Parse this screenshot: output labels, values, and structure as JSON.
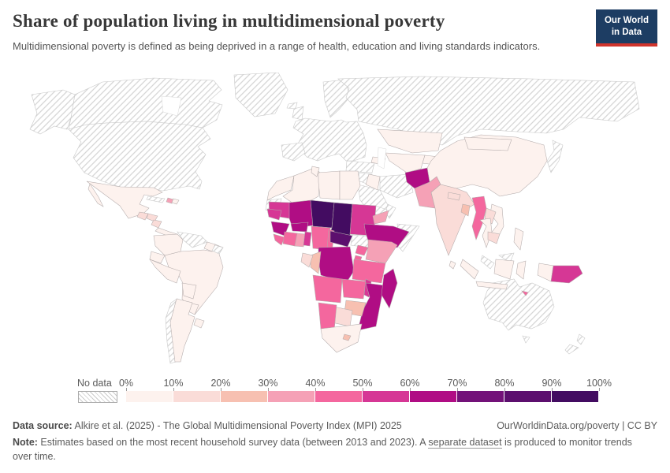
{
  "header": {
    "title": "Share of population living in multidimensional poverty",
    "subtitle": "Multidimensional poverty is defined as being deprived in a range of health, education and living standards indicators.",
    "logo": {
      "line1": "Our World",
      "line2": "in Data",
      "bg_color": "#1d3d63",
      "accent_color": "#d0342c"
    }
  },
  "legend": {
    "no_data_label": "No data",
    "tick_labels": [
      "0%",
      "10%",
      "20%",
      "30%",
      "40%",
      "50%",
      "60%",
      "70%",
      "80%",
      "90%",
      "100%"
    ]
  },
  "chart_data": {
    "type": "choropleth-map",
    "metric": "Share of population living in multidimensional poverty",
    "unit": "% of population",
    "bins": [
      {
        "range": "0-10%",
        "color": "#fdf2ee"
      },
      {
        "range": "10-20%",
        "color": "#fadcd8"
      },
      {
        "range": "20-30%",
        "color": "#f7c0b1"
      },
      {
        "range": "30-40%",
        "color": "#f5a1b6"
      },
      {
        "range": "40-50%",
        "color": "#f4679e"
      },
      {
        "range": "50-60%",
        "color": "#d63795"
      },
      {
        "range": "60-70%",
        "color": "#b00d84"
      },
      {
        "range": "70-80%",
        "color": "#731279"
      },
      {
        "range": "80-90%",
        "color": "#5c0f6e"
      },
      {
        "range": "90-100%",
        "color": "#430c61"
      }
    ],
    "no_data_style": "gray diagonal hatching",
    "countries": {
      "United States": "No data",
      "Canada": "No data",
      "Greenland": "No data",
      "Iceland": "No data",
      "Europe": "No data",
      "Russia": "No data",
      "Turkey": "No data",
      "Syria": "No data",
      "Saudi Arabia": "No data",
      "Oman": "No data",
      "Iran": "No data",
      "Japan": "No data",
      "Korea": "No data",
      "Malaysia": "No data",
      "Australia": "No data",
      "New Zealand": "No data",
      "Chile": "No data",
      "Venezuela": "No data",
      "Cuba": "No data",
      "French Guiana": "No data",
      "Western Sahara": "No data",
      "Somalia": "No data",
      "Eritrea": "No data",
      "South Sudan": "No data",
      "Mexico": "0-10%",
      "Guatemala": "10-20%",
      "Honduras": "10-20%",
      "Nicaragua": "10-20%",
      "Panama": "0-10%",
      "Haiti": "30-40%",
      "Dominican Republic": "0-10%",
      "Colombia": "0-10%",
      "Guyana": "0-10%",
      "Ecuador": "0-10%",
      "Peru": "0-10%",
      "Brazil": "0-10%",
      "Bolivia": "0-10%",
      "Paraguay": "0-10%",
      "Uruguay": "0-10%",
      "Argentina": "0-10%",
      "Morocco": "0-10%",
      "Algeria": "0-10%",
      "Tunisia": "0-10%",
      "Libya": "0-10%",
      "Egypt": "0-10%",
      "Mauritania": "50-60%",
      "Mali": "60-70%",
      "Niger": "90-100%",
      "Chad": "90-100%",
      "Sudan": "50-60%",
      "Ethiopia": "60-70%",
      "Senegal": "50-60%",
      "Guinea": "60-70%",
      "Sierra Leone": "40-50%",
      "Cote d'Ivoire": "40-50%",
      "Ghana": "30-40%",
      "Benin": "50-60%",
      "Burkina Faso": "60-70%",
      "Nigeria": "40-50%",
      "Cameroon": "40-50%",
      "Central African Republic": "80-90%",
      "Democratic Republic of Congo": "60-70%",
      "Congo": "20-30%",
      "Gabon": "10-20%",
      "Uganda": "40-50%",
      "Kenya": "30-40%",
      "Rwanda": "40-50%",
      "Tanzania": "40-50%",
      "Angola": "40-50%",
      "Zambia": "40-50%",
      "Malawi": "50-60%",
      "Mozambique": "60-70%",
      "Zimbabwe": "20-30%",
      "Botswana": "10-20%",
      "Namibia": "40-50%",
      "South Africa": "0-10%",
      "Lesotho": "20-30%",
      "Madagascar": "60-70%",
      "Iraq": "0-10%",
      "Yemen": "30-40%",
      "Azerbaijan": "0-10%",
      "Kazakhstan": "0-10%",
      "Uzbekistan": "0-10%",
      "Tajikistan": "0-10%",
      "Afghanistan": "60-70%",
      "Pakistan": "30-40%",
      "India": "10-20%",
      "Nepal": "10-20%",
      "Bangladesh": "20-30%",
      "Sri Lanka": "0-10%",
      "China": "0-10%",
      "Mongolia": "0-10%",
      "Myanmar": "40-50%",
      "Thailand": "0-10%",
      "Laos": "10-20%",
      "Vietnam": "0-10%",
      "Cambodia": "10-20%",
      "Philippines": "0-10%",
      "Indonesia": "0-10%",
      "Timor-Leste": "40-50%",
      "Papua New Guinea": "50-60%"
    }
  },
  "footer": {
    "datasource_label": "Data source:",
    "datasource_text": " Alkire et al. (2025) - The Global Multidimensional Poverty Index (MPI) 2025",
    "rights": "OurWorldinData.org/poverty | CC BY",
    "note_label": "Note:",
    "note_pre": " Estimates based on the most recent household survey data (between 2013 and 2023). A ",
    "note_link": "separate dataset",
    "note_post": " is produced to monitor trends over time."
  }
}
